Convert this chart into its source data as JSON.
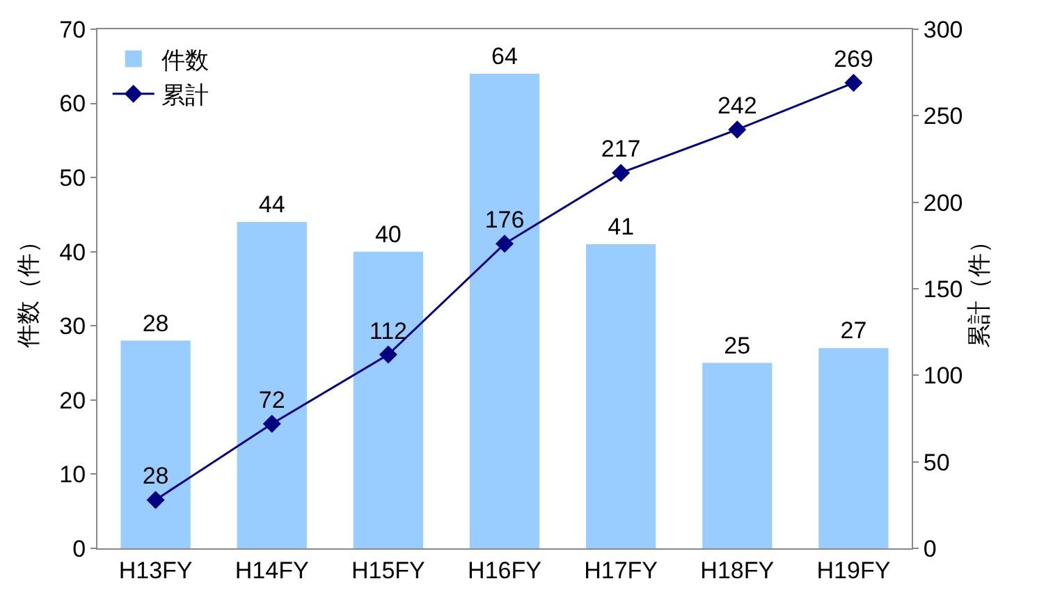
{
  "chart_data": {
    "type": "bar",
    "ylabel": "件数（件）",
    "y2label": "累計（件）",
    "categories": [
      "H13FY",
      "H14FY",
      "H15FY",
      "H16FY",
      "H17FY",
      "H18FY",
      "H19FY"
    ],
    "series": [
      {
        "name": "件数",
        "color": "#99ccff",
        "values": [
          28,
          44,
          40,
          64,
          41,
          25,
          27
        ]
      },
      {
        "name": "累計",
        "type": "line",
        "axis": "y2",
        "color": "#000080",
        "marker": "diamond",
        "line_style": "solid",
        "values": [
          28,
          72,
          112,
          176,
          217,
          242,
          269
        ]
      }
    ],
    "ylim": [
      0,
      70
    ],
    "yticks": [
      0,
      10,
      20,
      30,
      40,
      50,
      60,
      70
    ],
    "y2lim": [
      0,
      300
    ],
    "y2ticks": [
      0,
      50,
      100,
      150,
      200,
      250,
      300
    ],
    "data_labels": true,
    "grid": false,
    "legend": "top left"
  }
}
